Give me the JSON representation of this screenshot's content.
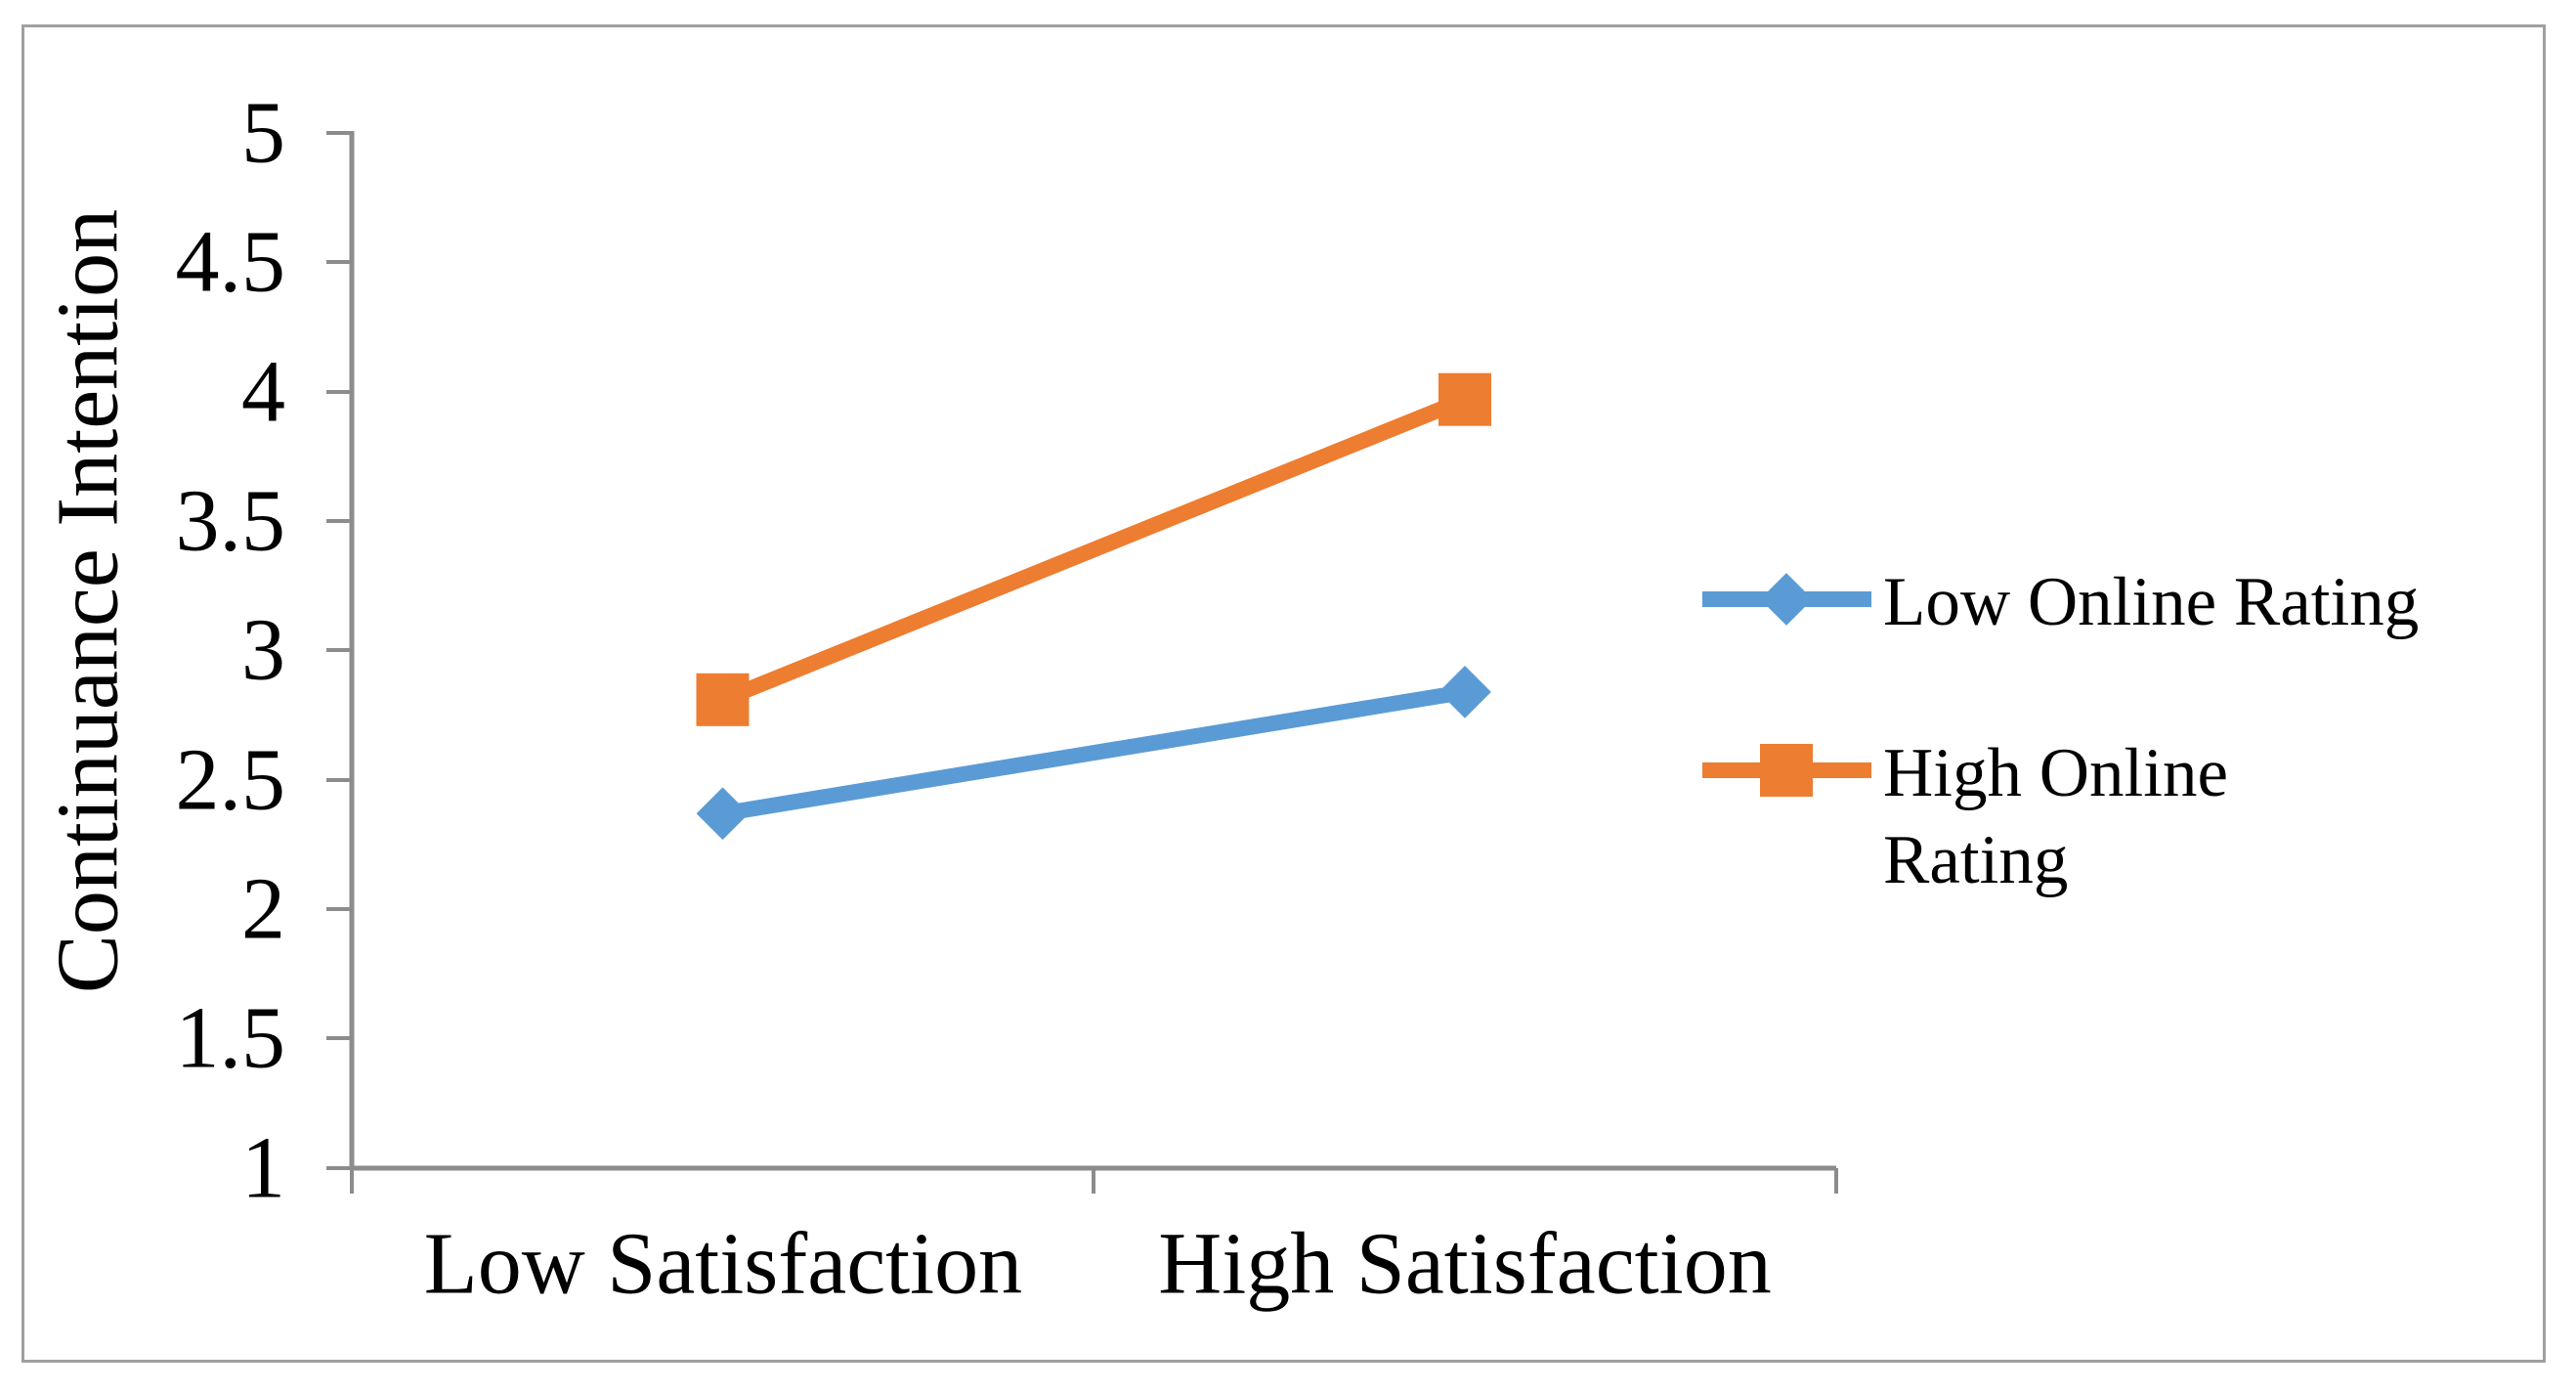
{
  "figure": {
    "background_color": "#ffffff",
    "border_color": "#a0a0a0"
  },
  "chart_data": {
    "type": "line",
    "title": "",
    "xlabel": "",
    "ylabel": "Continuance Intention",
    "categories": [
      "Low Satisfaction",
      "High Satisfaction"
    ],
    "series": [
      {
        "name": "Low Online Rating",
        "color": "#5B9BD5",
        "marker": "diamond",
        "values": [
          2.37,
          2.84
        ],
        "legend_lines": [
          "Low Online Rating"
        ]
      },
      {
        "name": "High Online Rating",
        "color": "#ED7D31",
        "marker": "square",
        "values": [
          2.81,
          3.97
        ],
        "legend_lines": [
          "High Online",
          "Rating"
        ]
      }
    ],
    "ylim": [
      1,
      5
    ],
    "ytick_step": 0.5,
    "yticks_top_to_bottom": [
      "5",
      "4.5",
      "4",
      "3.5",
      "3",
      "2.5",
      "2",
      "1.5",
      "1"
    ],
    "grid": false,
    "legend_position": "right-middle",
    "axis_color": "#8c8c8c",
    "text_color": "#000000"
  }
}
